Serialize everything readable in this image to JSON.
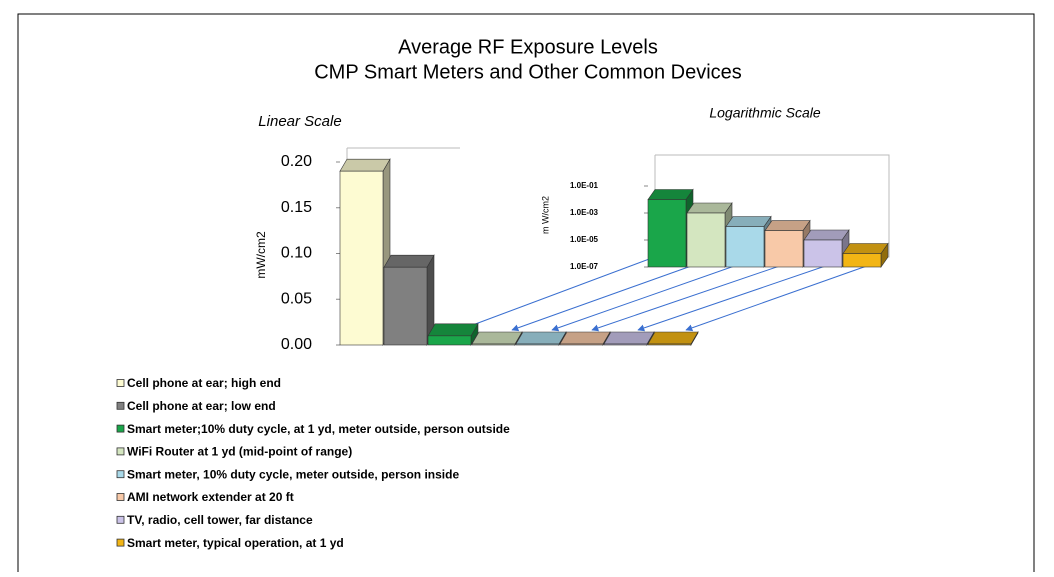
{
  "title": "Average RF Exposure Levels",
  "subtitle": "CMP Smart Meters and Other Common Devices",
  "chart_data": [
    {
      "type": "bar3d",
      "title": "Linear Scale",
      "y_label": "mW/cm2",
      "categories": [
        "Cell phone at ear; high end",
        "Cell phone at ear; low end",
        "Smart meter;10% duty cycle, at 1 yd, meter outside, person outside",
        "WiFi Router at 1 yd (mid-point of range)",
        "Smart meter, 10% duty cycle, meter outside, person inside",
        "AMI network extender at 20 ft",
        "TV, radio, cell tower, far distance",
        "Smart meter, typical operation, at 1 yd"
      ],
      "values": [
        0.19,
        0.085,
        0.01,
        0.001,
        0.0001,
        5e-05,
        1e-05,
        1e-06
      ],
      "colors": [
        "#fdfbd2",
        "#808080",
        "#1aa64a",
        "#d4e6c0",
        "#a9d9e9",
        "#f8c9a8",
        "#cbc3e8",
        "#f2b515"
      ],
      "ylim": [
        0,
        0.2
      ],
      "yticks": [
        {
          "value": 0,
          "label": "0.00"
        },
        {
          "value": 0.05,
          "label": "0.05"
        },
        {
          "value": 0.1,
          "label": "0.10"
        },
        {
          "value": 0.15,
          "label": "0.15"
        },
        {
          "value": 0.2,
          "label": "0.20"
        }
      ]
    },
    {
      "type": "bar3d",
      "title": "Logarithmic Scale",
      "y_label": "m W/cm2",
      "log_scale": true,
      "categories": [
        "Smart meter;10% duty cycle, at 1 yd, meter outside, person outside",
        "WiFi Router at 1 yd (mid-point of range)",
        "Smart meter, 10% duty cycle, meter outside, person inside",
        "AMI network extender at 20 ft",
        "TV, radio, cell tower, far distance",
        "Smart meter, typical operation, at 1 yd"
      ],
      "values": [
        0.01,
        0.001,
        0.0001,
        5e-05,
        1e-05,
        1e-06
      ],
      "colors": [
        "#1aa64a",
        "#d4e6c0",
        "#a9d9e9",
        "#f8c9a8",
        "#cbc3e8",
        "#f2b515"
      ],
      "ylim": [
        1e-07,
        0.1
      ],
      "yticks": [
        {
          "value": 0.1,
          "label": "1.0E-01"
        },
        {
          "value": 0.001,
          "label": "1.0E-03"
        },
        {
          "value": 1e-05,
          "label": "1.0E-05"
        },
        {
          "value": 1e-07,
          "label": "1.0E-07"
        }
      ]
    }
  ]
}
